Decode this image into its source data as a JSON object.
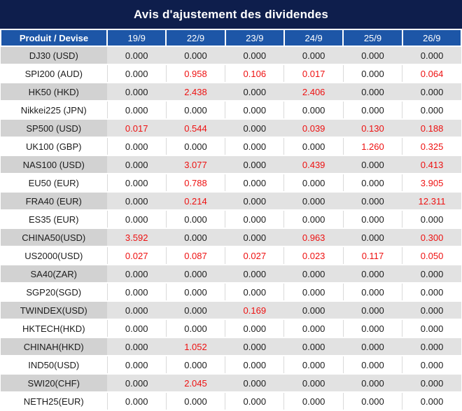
{
  "title": "Avis d'ajustement des dividendes",
  "colors": {
    "title_background": "#0e1e4c",
    "header_background": "#1d56a7",
    "stripe_row": "#e2e2e2",
    "stripe_product_cell": "#d2d2d2",
    "highlight_red": "#ee1111",
    "text": "#1c1c1c"
  },
  "table": {
    "product_header": "Produit / Devise",
    "date_headers": [
      "19/9",
      "22/9",
      "23/9",
      "24/9",
      "25/9",
      "26/9"
    ],
    "rows": [
      {
        "product": "DJ30 (USD)",
        "values": [
          "0.000",
          "0.000",
          "0.000",
          "0.000",
          "0.000",
          "0.000"
        ],
        "red": [
          false,
          false,
          false,
          false,
          false,
          false
        ]
      },
      {
        "product": "SPI200 (AUD)",
        "values": [
          "0.000",
          "0.958",
          "0.106",
          "0.017",
          "0.000",
          "0.064"
        ],
        "red": [
          false,
          true,
          true,
          true,
          false,
          true
        ]
      },
      {
        "product": "HK50 (HKD)",
        "values": [
          "0.000",
          "2.438",
          "0.000",
          "2.406",
          "0.000",
          "0.000"
        ],
        "red": [
          false,
          true,
          false,
          true,
          false,
          false
        ]
      },
      {
        "product": "Nikkei225 (JPN)",
        "values": [
          "0.000",
          "0.000",
          "0.000",
          "0.000",
          "0.000",
          "0.000"
        ],
        "red": [
          false,
          false,
          false,
          false,
          false,
          false
        ]
      },
      {
        "product": "SP500 (USD)",
        "values": [
          "0.017",
          "0.544",
          "0.000",
          "0.039",
          "0.130",
          "0.188"
        ],
        "red": [
          true,
          true,
          false,
          true,
          true,
          true
        ]
      },
      {
        "product": "UK100 (GBP)",
        "values": [
          "0.000",
          "0.000",
          "0.000",
          "0.000",
          "1.260",
          "0.325"
        ],
        "red": [
          false,
          false,
          false,
          false,
          true,
          true
        ]
      },
      {
        "product": "NAS100 (USD)",
        "values": [
          "0.000",
          "3.077",
          "0.000",
          "0.439",
          "0.000",
          "0.413"
        ],
        "red": [
          false,
          true,
          false,
          true,
          false,
          true
        ]
      },
      {
        "product": "EU50 (EUR)",
        "values": [
          "0.000",
          "0.788",
          "0.000",
          "0.000",
          "0.000",
          "3.905"
        ],
        "red": [
          false,
          true,
          false,
          false,
          false,
          true
        ]
      },
      {
        "product": "FRA40 (EUR)",
        "values": [
          "0.000",
          "0.214",
          "0.000",
          "0.000",
          "0.000",
          "12.311"
        ],
        "red": [
          false,
          true,
          false,
          false,
          false,
          true
        ]
      },
      {
        "product": "ES35 (EUR)",
        "values": [
          "0.000",
          "0.000",
          "0.000",
          "0.000",
          "0.000",
          "0.000"
        ],
        "red": [
          false,
          false,
          false,
          false,
          false,
          false
        ]
      },
      {
        "product": "CHINA50(USD)",
        "values": [
          "3.592",
          "0.000",
          "0.000",
          "0.963",
          "0.000",
          "0.300"
        ],
        "red": [
          true,
          false,
          false,
          true,
          false,
          true
        ]
      },
      {
        "product": "US2000(USD)",
        "values": [
          "0.027",
          "0.087",
          "0.027",
          "0.023",
          "0.117",
          "0.050"
        ],
        "red": [
          true,
          true,
          true,
          true,
          true,
          true
        ]
      },
      {
        "product": "SA40(ZAR)",
        "values": [
          "0.000",
          "0.000",
          "0.000",
          "0.000",
          "0.000",
          "0.000"
        ],
        "red": [
          false,
          false,
          false,
          false,
          false,
          false
        ]
      },
      {
        "product": "SGP20(SGD)",
        "values": [
          "0.000",
          "0.000",
          "0.000",
          "0.000",
          "0.000",
          "0.000"
        ],
        "red": [
          false,
          false,
          false,
          false,
          false,
          false
        ]
      },
      {
        "product": "TWINDEX(USD)",
        "values": [
          "0.000",
          "0.000",
          "0.169",
          "0.000",
          "0.000",
          "0.000"
        ],
        "red": [
          false,
          false,
          true,
          false,
          false,
          false
        ]
      },
      {
        "product": "HKTECH(HKD)",
        "values": [
          "0.000",
          "0.000",
          "0.000",
          "0.000",
          "0.000",
          "0.000"
        ],
        "red": [
          false,
          false,
          false,
          false,
          false,
          false
        ]
      },
      {
        "product": "CHINAH(HKD)",
        "values": [
          "0.000",
          "1.052",
          "0.000",
          "0.000",
          "0.000",
          "0.000"
        ],
        "red": [
          false,
          true,
          false,
          false,
          false,
          false
        ]
      },
      {
        "product": "IND50(USD)",
        "values": [
          "0.000",
          "0.000",
          "0.000",
          "0.000",
          "0.000",
          "0.000"
        ],
        "red": [
          false,
          false,
          false,
          false,
          false,
          false
        ]
      },
      {
        "product": "SWI20(CHF)",
        "values": [
          "0.000",
          "2.045",
          "0.000",
          "0.000",
          "0.000",
          "0.000"
        ],
        "red": [
          false,
          true,
          false,
          false,
          false,
          false
        ]
      },
      {
        "product": "NETH25(EUR)",
        "values": [
          "0.000",
          "0.000",
          "0.000",
          "0.000",
          "0.000",
          "0.000"
        ],
        "red": [
          false,
          false,
          false,
          false,
          false,
          false
        ]
      }
    ]
  }
}
